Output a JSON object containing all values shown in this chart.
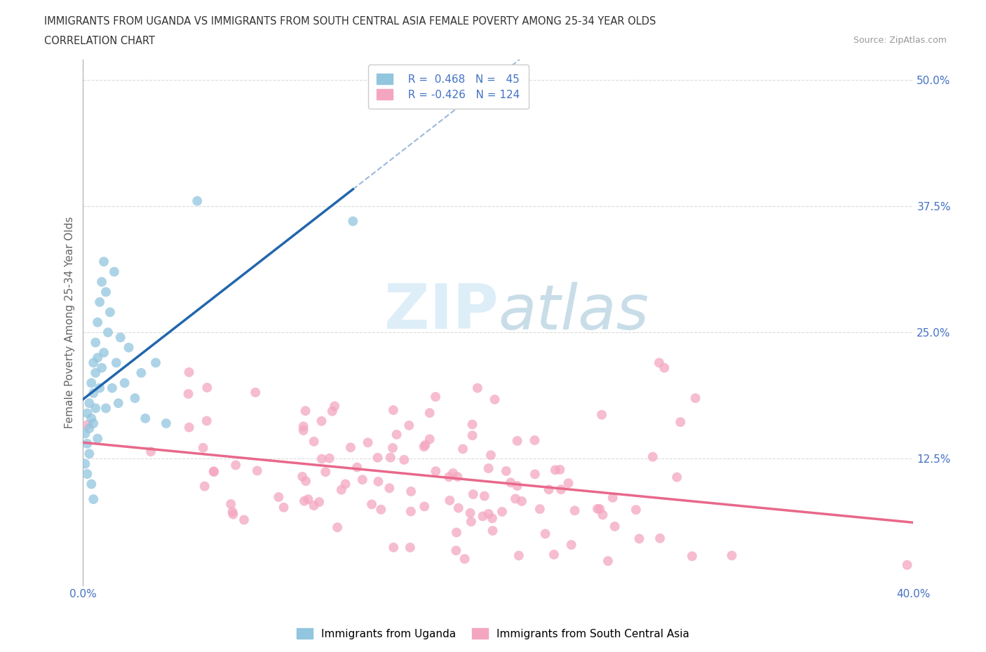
{
  "title_line1": "IMMIGRANTS FROM UGANDA VS IMMIGRANTS FROM SOUTH CENTRAL ASIA FEMALE POVERTY AMONG 25-34 YEAR OLDS",
  "title_line2": "CORRELATION CHART",
  "source": "Source: ZipAtlas.com",
  "ylabel": "Female Poverty Among 25-34 Year Olds",
  "xlim": [
    0.0,
    0.4
  ],
  "ylim": [
    0.0,
    0.52
  ],
  "legend_uganda_R": "0.468",
  "legend_uganda_N": "45",
  "legend_sca_R": "-0.426",
  "legend_sca_N": "124",
  "uganda_color": "#92c5de",
  "sca_color": "#f4a6c0",
  "uganda_line_color": "#2166ac",
  "sca_line_color": "#e8688a",
  "watermark_color": "#ddeef8",
  "background_color": "#ffffff",
  "grid_color": "#cccccc",
  "tick_color": "#4472C4",
  "title_color": "#333333",
  "ylabel_color": "#666666",
  "source_color": "#999999",
  "uganda_scatter_seed": 77,
  "sca_scatter_seed": 42
}
